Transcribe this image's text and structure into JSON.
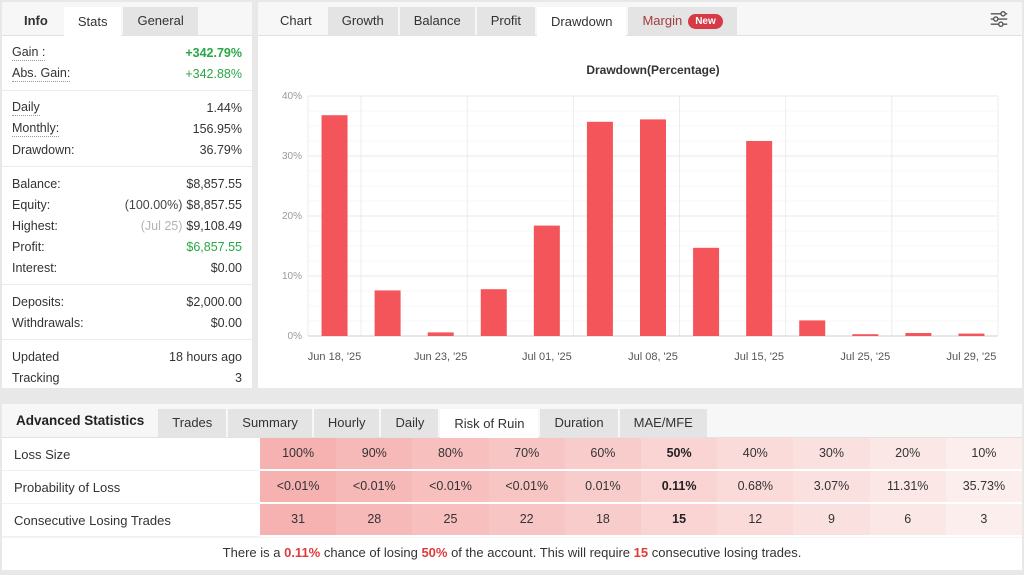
{
  "colors": {
    "green": "#28a745",
    "bar_red": "#f4555a",
    "accent_red": "#e03a3a",
    "margin_text": "#a33e3e",
    "badge_bg": "#d63a47",
    "pink_start": "#f6b1b1",
    "pink_end": "#fdeeee"
  },
  "left_panel": {
    "tabs": [
      {
        "label": "Info",
        "style": "plain bold"
      },
      {
        "label": "Stats",
        "style": "active"
      },
      {
        "label": "General",
        "style": ""
      }
    ],
    "groups": [
      {
        "rows": [
          {
            "label": "Gain :",
            "value": "+342.79%",
            "value_style": "green bold",
            "label_dotted": true
          },
          {
            "label": "Abs. Gain:",
            "value": "+342.88%",
            "value_style": "green",
            "label_dotted": true
          }
        ]
      },
      {
        "rows": [
          {
            "label": "Daily",
            "value": "1.44%",
            "label_dotted": true
          },
          {
            "label": "Monthly:",
            "value": "156.95%",
            "label_dotted": true
          },
          {
            "label": "Drawdown:",
            "value": "36.79%"
          }
        ]
      },
      {
        "rows": [
          {
            "label": "Balance:",
            "value": "$8,857.55"
          },
          {
            "label": "Equity:",
            "value": "$8,857.55",
            "prefix": "(100.00%)"
          },
          {
            "label": "Highest:",
            "value": "$9,108.49",
            "prefix": "(Jul 25)",
            "prefix_muted": true
          },
          {
            "label": "Profit:",
            "value": "$6,857.55",
            "value_style": "green"
          },
          {
            "label": "Interest:",
            "value": "$0.00"
          }
        ]
      },
      {
        "rows": [
          {
            "label": "Deposits:",
            "value": "$2,000.00"
          },
          {
            "label": "Withdrawals:",
            "value": "$0.00"
          }
        ]
      },
      {
        "rows": [
          {
            "label": "Updated",
            "value": "18 hours ago"
          },
          {
            "label": "Tracking",
            "value": "3"
          }
        ]
      }
    ]
  },
  "chart_panel": {
    "tabs": [
      {
        "label": "Chart",
        "style": "plain"
      },
      {
        "label": "Growth",
        "style": ""
      },
      {
        "label": "Balance",
        "style": ""
      },
      {
        "label": "Profit",
        "style": ""
      },
      {
        "label": "Drawdown",
        "style": "active"
      },
      {
        "label": "Margin",
        "style": "margin",
        "badge": "New"
      }
    ]
  },
  "chart_data": {
    "type": "bar",
    "title": "Drawdown(Percentage)",
    "values": [
      36.8,
      7.6,
      0.6,
      7.8,
      18.4,
      35.7,
      36.1,
      14.7,
      32.5,
      2.6,
      0.3,
      0.5,
      0.4
    ],
    "x_tick_labels": [
      "Jun 18, '25",
      "Jun 23, '25",
      "Jul 01, '25",
      "Jul 08, '25",
      "Jul 15, '25",
      "Jul 25, '25",
      "Jul 29, '25"
    ],
    "labeled_bar_indices": [
      0,
      2,
      4,
      6,
      8,
      10,
      12
    ],
    "y_ticks": [
      "0%",
      "10%",
      "20%",
      "30%",
      "40%"
    ],
    "ylim": [
      0,
      40
    ],
    "ylabel": "",
    "xlabel": "",
    "grid": true,
    "legend": false,
    "bar_color": "#f4555a"
  },
  "bottom_panel": {
    "heading": "Advanced Statistics",
    "tabs": [
      {
        "label": "Trades",
        "style": ""
      },
      {
        "label": "Summary",
        "style": ""
      },
      {
        "label": "Hourly",
        "style": ""
      },
      {
        "label": "Daily",
        "style": ""
      },
      {
        "label": "Risk of Ruin",
        "style": "active"
      },
      {
        "label": "Duration",
        "style": ""
      },
      {
        "label": "MAE/MFE",
        "style": ""
      }
    ],
    "table": {
      "rows": [
        {
          "label": "Loss Size",
          "values": [
            "100%",
            "90%",
            "80%",
            "70%",
            "60%",
            "50%",
            "40%",
            "30%",
            "20%",
            "10%"
          ]
        },
        {
          "label": "Probability of Loss",
          "values": [
            "<0.01%",
            "<0.01%",
            "<0.01%",
            "<0.01%",
            "0.01%",
            "0.11%",
            "0.68%",
            "3.07%",
            "11.31%",
            "35.73%"
          ]
        },
        {
          "label": "Consecutive Losing Trades",
          "values": [
            "31",
            "28",
            "25",
            "22",
            "18",
            "15",
            "12",
            "9",
            "6",
            "3"
          ]
        }
      ],
      "highlight_column": 5
    },
    "summary": {
      "parts": [
        "There is a ",
        "0.11%",
        " chance of losing ",
        "50%",
        " of the account. This will require ",
        "15",
        " consecutive losing trades."
      ],
      "red_indices": [
        1,
        3,
        5
      ]
    }
  }
}
